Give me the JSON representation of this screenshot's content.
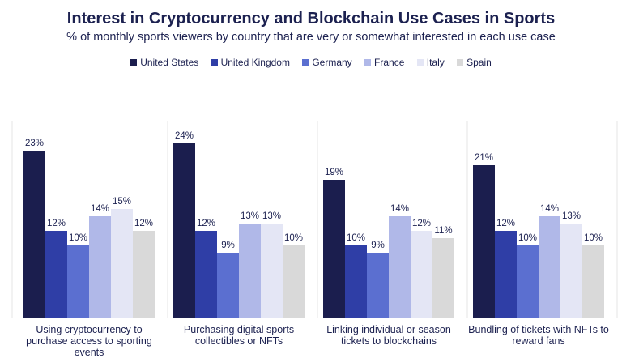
{
  "chart_data": {
    "type": "bar",
    "title": "Interest in Cryptocurrency and Blockchain Use Cases in Sports",
    "subtitle": "% of monthly sports viewers by country that are very or somewhat interested in each use case",
    "categories": [
      "Using cryptocurrency to purchase access to sporting events",
      "Purchasing digital sports collectibles or NFTs",
      "Linking individual or season tickets to blockchains",
      "Bundling of tickets with NFTs to reward fans"
    ],
    "series": [
      {
        "name": "United States",
        "color": "#1b1e4e",
        "values": [
          23,
          24,
          19,
          21
        ]
      },
      {
        "name": "United Kingdom",
        "color": "#2f3ea6",
        "values": [
          12,
          12,
          10,
          12
        ]
      },
      {
        "name": "Germany",
        "color": "#5b6fd0",
        "values": [
          10,
          9,
          9,
          10
        ]
      },
      {
        "name": "France",
        "color": "#b0b8e8",
        "values": [
          14,
          13,
          14,
          14
        ]
      },
      {
        "name": "Italy",
        "color": "#e4e6f5",
        "values": [
          15,
          13,
          12,
          13
        ]
      },
      {
        "name": "Spain",
        "color": "#d9d9d9",
        "values": [
          12,
          10,
          11,
          10
        ]
      }
    ],
    "value_suffix": "%",
    "ylim": [
      0,
      25
    ],
    "legend_position": "top-center",
    "grid": false
  }
}
